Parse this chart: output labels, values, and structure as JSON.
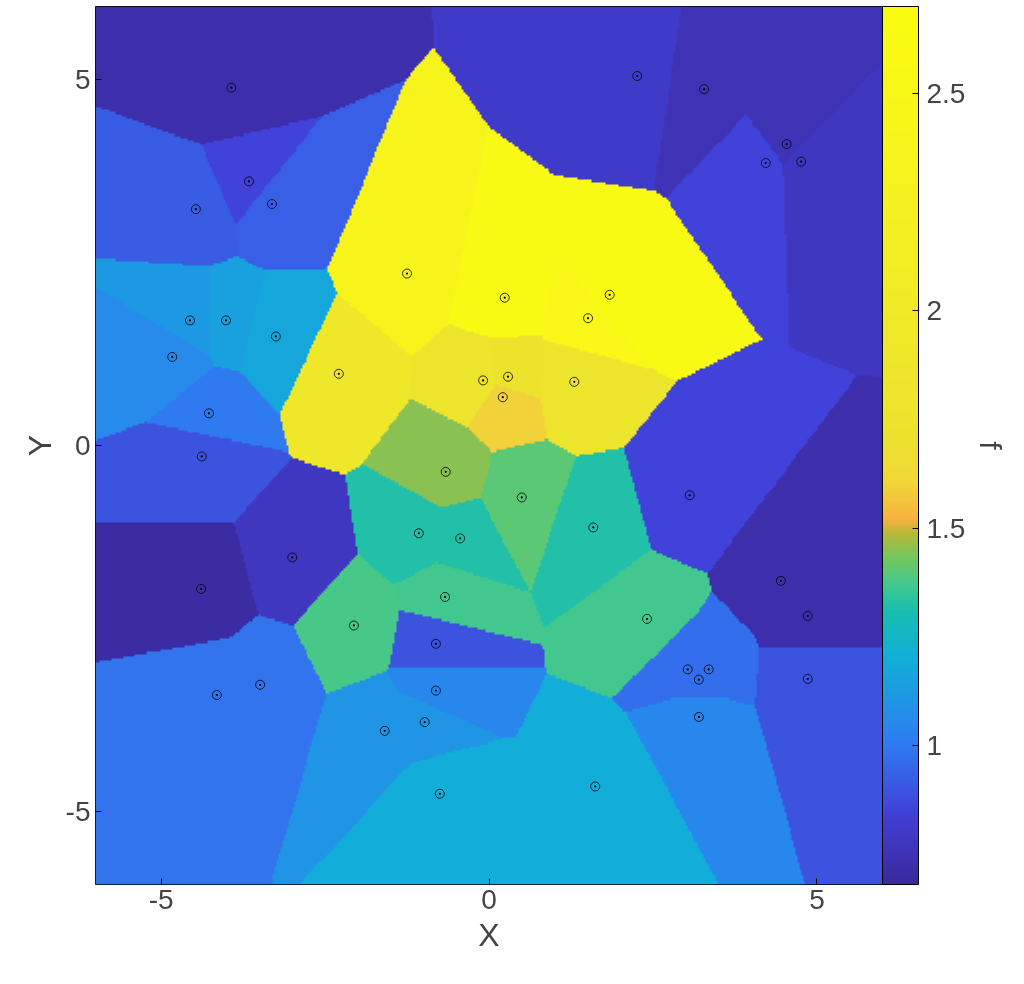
{
  "chart_data": {
    "type": "scatter",
    "xlabel": "X",
    "ylabel": "Y",
    "clabel": "f",
    "xlim": [
      -6,
      6
    ],
    "ylim": [
      -6,
      6
    ],
    "xticks": [
      -5,
      0,
      5
    ],
    "yticks": [
      -5,
      0,
      5
    ],
    "clim": [
      0.68,
      2.7
    ],
    "cticks": [
      1,
      1.5,
      2,
      2.5
    ],
    "grid": false,
    "marker": "circle",
    "x": [
      -3.93,
      -3.66,
      -4.47,
      -3.31,
      -1.25,
      -4.56,
      -4.01,
      -3.25,
      -4.83,
      -2.29,
      -0.09,
      -4.27,
      2.26,
      3.28,
      4.54,
      4.22,
      4.76,
      0.24,
      1.84,
      1.51,
      0.29,
      0.21,
      1.3,
      -4.38,
      -0.66,
      -3.0,
      -4.39,
      -1.07,
      -0.44,
      -0.67,
      -2.06,
      -0.81,
      -4.15,
      -3.49,
      -0.81,
      -0.98,
      -1.59,
      -0.75,
      0.5,
      1.59,
      3.06,
      4.45,
      4.86,
      2.41,
      3.03,
      3.35,
      3.2,
      4.86,
      3.2,
      1.62
    ],
    "values": [
      4.89,
      3.61,
      3.23,
      3.3,
      2.35,
      1.71,
      1.71,
      1.49,
      1.21,
      0.98,
      0.89,
      0.44,
      5.05,
      4.87,
      4.12,
      3.86,
      3.88,
      2.02,
      2.06,
      1.74,
      0.94,
      0.66,
      0.87,
      -0.15,
      -0.36,
      -1.53,
      -1.96,
      -1.2,
      -1.27,
      -2.07,
      -2.46,
      -2.71,
      -3.41,
      -3.27,
      -3.35,
      -3.78,
      -3.9,
      -4.76,
      -0.71,
      -1.12,
      -0.68,
      -1.85,
      -2.33,
      -2.37,
      -3.06,
      -3.06,
      -3.2,
      -3.19,
      -3.71,
      -4.66
    ],
    "cvalues": [
      0.72,
      0.85,
      0.92,
      0.93,
      2.4,
      1.12,
      1.15,
      1.17,
      1.06,
      1.9,
      1.8,
      1.0,
      0.8,
      0.75,
      0.75,
      0.85,
      0.78,
      2.6,
      2.6,
      2.5,
      1.75,
      1.6,
      1.8,
      0.9,
      1.45,
      0.78,
      0.7,
      1.32,
      1.32,
      1.37,
      1.38,
      0.9,
      0.98,
      0.98,
      1.05,
      1.1,
      1.1,
      1.2,
      1.4,
      1.32,
      0.85,
      0.72,
      0.72,
      1.37,
      0.97,
      0.97,
      0.97,
      0.9,
      1.05,
      1.2
    ]
  }
}
